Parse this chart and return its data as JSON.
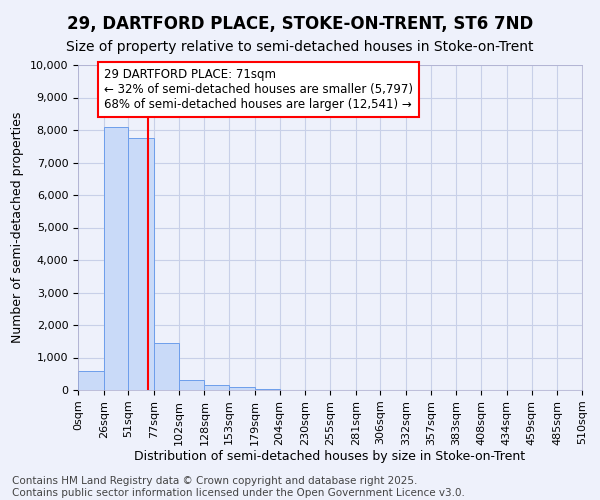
{
  "title": "29, DARTFORD PLACE, STOKE-ON-TRENT, ST6 7ND",
  "subtitle": "Size of property relative to semi-detached houses in Stoke-on-Trent",
  "xlabel": "Distribution of semi-detached houses by size in Stoke-on-Trent",
  "ylabel": "Number of semi-detached properties",
  "bar_values": [
    570,
    8100,
    7750,
    1450,
    310,
    140,
    90,
    30,
    0,
    0,
    0,
    0,
    0,
    0,
    0,
    0,
    0,
    0,
    0,
    0
  ],
  "bar_labels": [
    "0sqm",
    "26sqm",
    "51sqm",
    "77sqm",
    "102sqm",
    "128sqm",
    "153sqm",
    "179sqm",
    "204sqm",
    "230sqm",
    "255sqm",
    "281sqm",
    "306sqm",
    "332sqm",
    "357sqm",
    "383sqm",
    "408sqm",
    "434sqm",
    "459sqm",
    "485sqm",
    "510sqm"
  ],
  "bar_color": "#c9daf8",
  "bar_edgecolor": "#6d9eeb",
  "red_line_x": 71,
  "annotation_text": "29 DARTFORD PLACE: 71sqm\n← 32% of semi-detached houses are smaller (5,797)\n68% of semi-detached houses are larger (12,541) →",
  "annotation_box_color": "white",
  "annotation_box_edgecolor": "red",
  "red_line_color": "red",
  "ylim": [
    0,
    10000
  ],
  "yticks": [
    0,
    1000,
    2000,
    3000,
    4000,
    5000,
    6000,
    7000,
    8000,
    9000,
    10000
  ],
  "footnote": "Contains HM Land Registry data © Crown copyright and database right 2025.\nContains public sector information licensed under the Open Government Licence v3.0.",
  "bg_color": "#eef1fb",
  "grid_color": "#c8d0e8",
  "title_fontsize": 12,
  "subtitle_fontsize": 10,
  "axis_label_fontsize": 9,
  "tick_fontsize": 8,
  "annotation_fontsize": 8.5,
  "footnote_fontsize": 7.5
}
